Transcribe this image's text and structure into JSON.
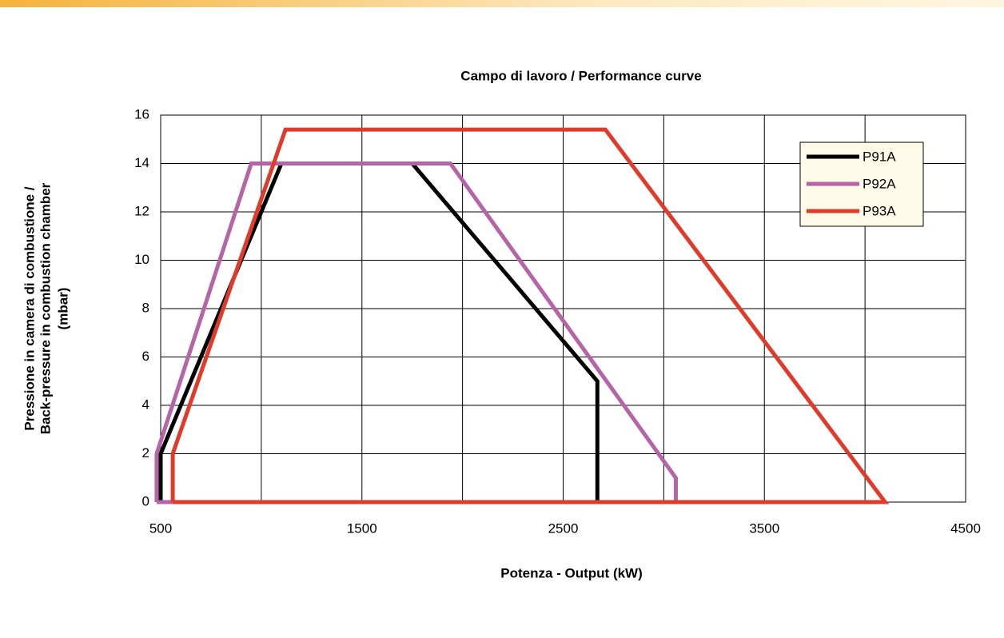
{
  "chart_data": {
    "type": "line",
    "title": "Campo di lavoro / Performance curve",
    "xlabel": "Potenza - Output (kW)",
    "ylabel": [
      "Pressione in camera di combustione /",
      "Back-pressure in combustion chamber",
      "(mbar)"
    ],
    "xlim": [
      500,
      4500
    ],
    "xticks": [
      500,
      1500,
      2500,
      3500,
      4500
    ],
    "xminorticks": [
      1000,
      2000,
      3000,
      4000
    ],
    "ylim": [
      0,
      16
    ],
    "yticks": [
      0,
      2,
      4,
      6,
      8,
      10,
      12,
      14,
      16
    ],
    "grid": true,
    "legend": "upper right",
    "series": [
      {
        "name": "P91A",
        "color": "#000000",
        "x": [
          500,
          2670,
          2670,
          1750,
          1100,
          500,
          500
        ],
        "y": [
          0,
          0,
          5,
          14,
          14,
          2,
          0
        ]
      },
      {
        "name": "P92A",
        "color": "#b565a7",
        "x": [
          480,
          3060,
          3060,
          1940,
          950,
          480,
          480
        ],
        "y": [
          0,
          0,
          1,
          14,
          14,
          2,
          0
        ]
      },
      {
        "name": "P93A",
        "color": "#e03a2a",
        "x": [
          560,
          4100,
          2710,
          1120,
          560,
          560
        ],
        "y": [
          0,
          0,
          15.4,
          15.4,
          2,
          0
        ]
      }
    ]
  }
}
